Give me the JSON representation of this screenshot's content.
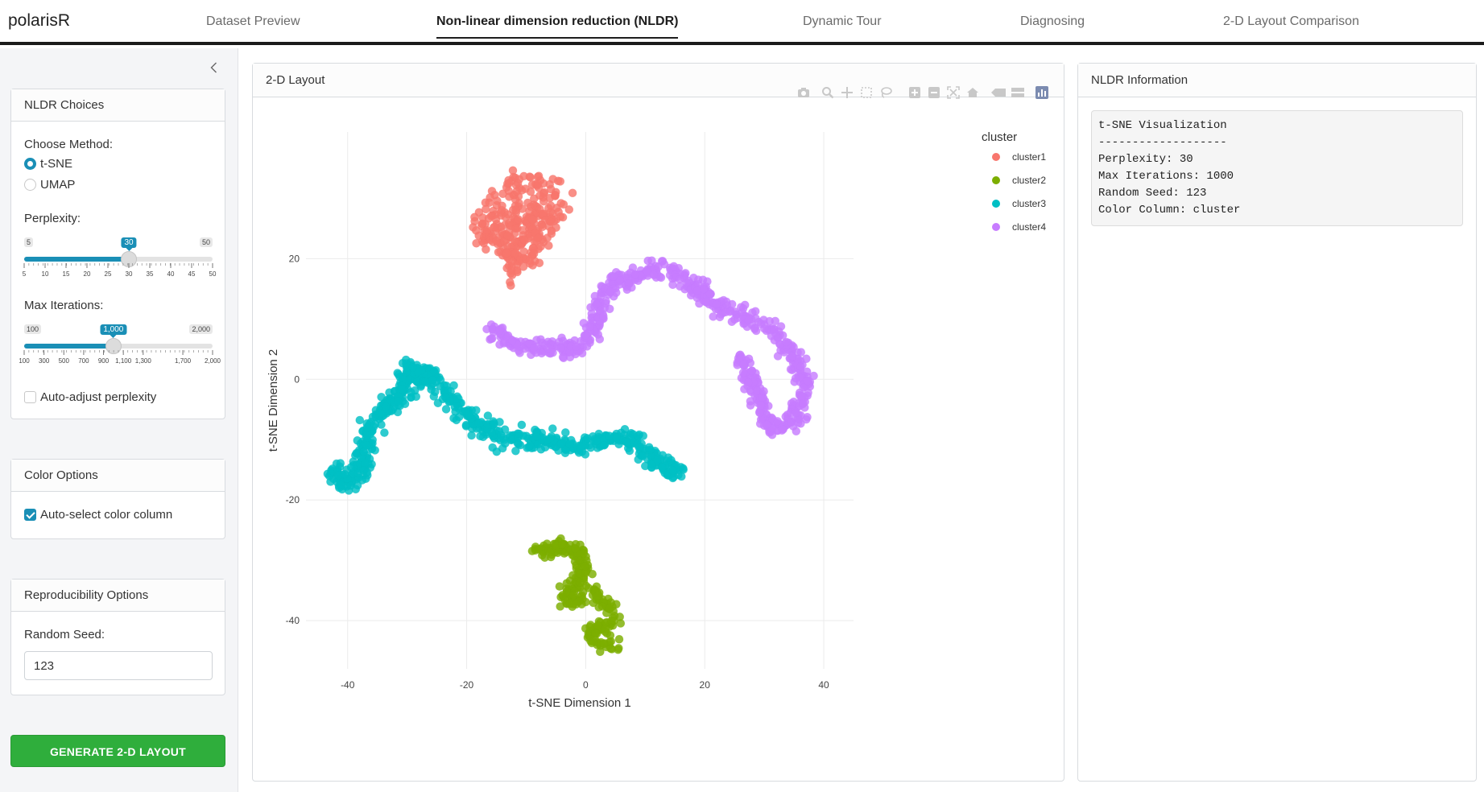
{
  "app": {
    "brand": "polarisR"
  },
  "nav": {
    "tabs": [
      {
        "label": "Dataset Preview",
        "active": false
      },
      {
        "label": "Non-linear dimension reduction (NLDR)",
        "active": true
      },
      {
        "label": "Dynamic Tour",
        "active": false
      },
      {
        "label": "Diagnosing",
        "active": false
      },
      {
        "label": "2-D Layout Comparison",
        "active": false
      }
    ]
  },
  "sidebar": {
    "collapse_icon": "chevron-left-icon",
    "nldr_choices": {
      "title": "NLDR Choices",
      "method_label": "Choose Method:",
      "methods": [
        {
          "label": "t-SNE",
          "selected": true
        },
        {
          "label": "UMAP",
          "selected": false
        }
      ],
      "perplexity": {
        "label": "Perplexity:",
        "min": "5",
        "max": "50",
        "value": "30",
        "value_num": 30,
        "min_num": 5,
        "max_num": 50,
        "ticks": [
          "5",
          "10",
          "15",
          "20",
          "25",
          "30",
          "35",
          "40",
          "45",
          "50"
        ]
      },
      "max_iterations": {
        "label": "Max Iterations:",
        "min": "100",
        "max": "2,000",
        "value": "1,000",
        "value_num": 1000,
        "min_num": 100,
        "max_num": 2000,
        "ticks": [
          "100",
          "300",
          "500",
          "700",
          "900",
          "1,100",
          "1,300",
          "1,700",
          "2,000"
        ],
        "tick_values": [
          100,
          300,
          500,
          700,
          900,
          1100,
          1300,
          1700,
          2000
        ]
      },
      "auto_adjust": {
        "label": "Auto-adjust perplexity",
        "checked": false
      }
    },
    "color_options": {
      "title": "Color Options",
      "auto_select": {
        "label": "Auto-select color column",
        "checked": true
      }
    },
    "reproducibility": {
      "title": "Reproducibility Options",
      "seed_label": "Random Seed:",
      "seed_value": "123"
    },
    "generate_button": "GENERATE 2-D LAYOUT"
  },
  "layout_panel": {
    "title": "2-D Layout",
    "modebar_icons": [
      "camera-icon",
      "zoom-icon",
      "pan-icon",
      "box-select-icon",
      "lasso-select-icon",
      "zoom-in-icon",
      "zoom-out-icon",
      "autoscale-icon",
      "reset-axes-icon",
      "hover-closest-icon",
      "hover-compare-icon",
      "plotly-logo-icon"
    ]
  },
  "info_panel": {
    "title": "NLDR Information",
    "lines": [
      "t-SNE Visualization",
      "-------------------",
      "Perplexity: 30",
      "Max Iterations: 1000",
      "Random Seed: 123",
      "Color Column: cluster"
    ]
  },
  "colors": {
    "accent": "#1a8fb6",
    "generate": "#2fae3c",
    "cluster1": "#f8766d",
    "cluster2": "#7cae00",
    "cluster3": "#00bfc4",
    "cluster4": "#c77cff"
  },
  "chart_data": {
    "type": "scatter",
    "xlabel": "t-SNE Dimension 1",
    "ylabel": "t-SNE Dimension 2",
    "xlim": [
      -47,
      45
    ],
    "ylim": [
      -48,
      41
    ],
    "x_ticks": [
      -40,
      -20,
      0,
      20,
      40
    ],
    "y_ticks": [
      20,
      0,
      -20,
      -40
    ],
    "x_tick_labels": [
      "-40",
      "-20",
      "0",
      "20",
      "40"
    ],
    "y_tick_labels": [
      "20",
      "0",
      "-20",
      "-40"
    ],
    "grid": true,
    "legend": {
      "title": "cluster",
      "position": "top-right"
    },
    "series": [
      {
        "name": "cluster1",
        "color": "#f8766d",
        "approx_points": 300,
        "path": [
          [
            -19,
            25
          ],
          [
            -17,
            29
          ],
          [
            -14,
            32
          ],
          [
            -10,
            34
          ],
          [
            -5,
            34
          ],
          [
            -4,
            30
          ],
          [
            -4,
            27
          ],
          [
            -6,
            25
          ],
          [
            -7,
            22
          ],
          [
            -9,
            19
          ],
          [
            -11,
            18
          ],
          [
            -12,
            16
          ],
          [
            -13,
            19
          ],
          [
            -15,
            21
          ],
          [
            -18,
            23
          ],
          [
            -19,
            25
          ]
        ],
        "spread": 1.2,
        "fill": true
      },
      {
        "name": "cluster2",
        "color": "#7cae00",
        "approx_points": 250,
        "path": [
          [
            -8,
            -29
          ],
          [
            -6,
            -28
          ],
          [
            -3,
            -28
          ],
          [
            -1,
            -29
          ],
          [
            0,
            -32
          ],
          [
            -2,
            -34
          ],
          [
            -4,
            -36
          ],
          [
            -2,
            -37
          ],
          [
            1,
            -35
          ],
          [
            3,
            -37
          ],
          [
            5,
            -39
          ],
          [
            4,
            -41
          ],
          [
            2,
            -41
          ],
          [
            1,
            -43
          ],
          [
            3,
            -44
          ],
          [
            5,
            -44
          ]
        ],
        "spread": 0.9
      },
      {
        "name": "cluster3",
        "color": "#00bfc4",
        "approx_points": 650,
        "path": [
          [
            -42,
            -15
          ],
          [
            -40,
            -17
          ],
          [
            -38,
            -16
          ],
          [
            -37,
            -12
          ],
          [
            -36,
            -8
          ],
          [
            -34,
            -5
          ],
          [
            -31,
            -3
          ],
          [
            -30,
            2
          ],
          [
            -28,
            0
          ],
          [
            -26,
            1
          ],
          [
            -24,
            -2
          ],
          [
            -21,
            -5
          ],
          [
            -19,
            -7
          ],
          [
            -16,
            -8
          ],
          [
            -14,
            -10
          ],
          [
            -10,
            -10
          ],
          [
            -6,
            -10
          ],
          [
            -3,
            -11
          ],
          [
            0,
            -11
          ],
          [
            3,
            -10
          ],
          [
            5,
            -9
          ],
          [
            8,
            -10
          ],
          [
            10,
            -12
          ],
          [
            12,
            -14
          ],
          [
            14,
            -15
          ],
          [
            16,
            -15
          ]
        ],
        "spread": 1.2
      },
      {
        "name": "cluster4",
        "color": "#c77cff",
        "approx_points": 650,
        "path": [
          [
            -16,
            8
          ],
          [
            -12,
            6
          ],
          [
            -8,
            5
          ],
          [
            -4,
            5
          ],
          [
            -1,
            5
          ],
          [
            1,
            7
          ],
          [
            2,
            11
          ],
          [
            3,
            14
          ],
          [
            5,
            16
          ],
          [
            8,
            17
          ],
          [
            11,
            18
          ],
          [
            14,
            18
          ],
          [
            17,
            16
          ],
          [
            20,
            14
          ],
          [
            23,
            12
          ],
          [
            26,
            11
          ],
          [
            29,
            9
          ],
          [
            32,
            8
          ],
          [
            34,
            5
          ],
          [
            36,
            2
          ],
          [
            37,
            -1
          ],
          [
            36,
            -4
          ],
          [
            35,
            -7
          ],
          [
            32,
            -8
          ],
          [
            30,
            -6
          ],
          [
            29,
            -3
          ],
          [
            28,
            0
          ],
          [
            27,
            2
          ],
          [
            26,
            4
          ]
        ],
        "spread": 1.1
      }
    ]
  }
}
